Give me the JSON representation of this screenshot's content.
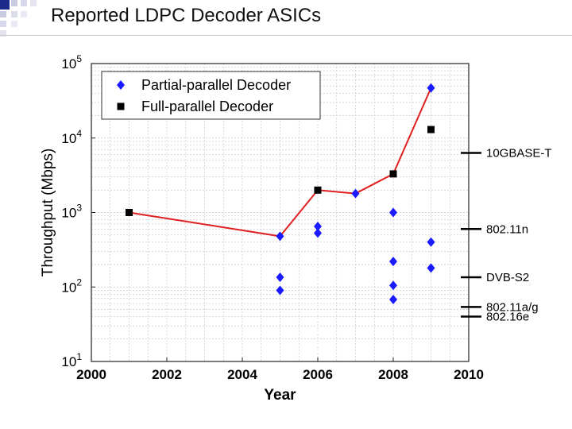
{
  "slide": {
    "title": "Reported LDPC Decoder ASICs"
  },
  "colors": {
    "partial": "#1a1aff",
    "full": "#000000",
    "trend": "#e02020",
    "grid": "#c8c8c8"
  },
  "standards": [
    {
      "label": "10GBASE-T",
      "throughput": 6300
    },
    {
      "label": "802.11n",
      "throughput": 600
    },
    {
      "label": "DVB-S2",
      "throughput": 135
    },
    {
      "label": "802.11a/g",
      "throughput": 54
    },
    {
      "label": "802.16e",
      "throughput": 40
    }
  ],
  "chart_data": {
    "type": "scatter",
    "xlabel": "Year",
    "ylabel": "Throughput (Mbps)",
    "xlim": [
      2000,
      2010
    ],
    "ylim": [
      10,
      100000
    ],
    "yscale": "log",
    "xticks": [
      2000,
      2002,
      2004,
      2006,
      2008,
      2010
    ],
    "yticks": [
      {
        "value": 10,
        "base": "10",
        "exp": "1"
      },
      {
        "value": 100,
        "base": "10",
        "exp": "2"
      },
      {
        "value": 1000,
        "base": "10",
        "exp": "3"
      },
      {
        "value": 10000,
        "base": "10",
        "exp": "4"
      },
      {
        "value": 100000,
        "base": "10",
        "exp": "5"
      }
    ],
    "grid": true,
    "legend_position": "top-left",
    "series": [
      {
        "name": "Partial-parallel Decoder",
        "marker": "diamond",
        "points": [
          [
            2005,
            480
          ],
          [
            2005,
            135
          ],
          [
            2005,
            90
          ],
          [
            2006,
            650
          ],
          [
            2006,
            530
          ],
          [
            2007,
            1800
          ],
          [
            2008,
            1000
          ],
          [
            2008,
            220
          ],
          [
            2008,
            105
          ],
          [
            2008,
            68
          ],
          [
            2009,
            47000
          ],
          [
            2009,
            400
          ],
          [
            2009,
            180
          ]
        ]
      },
      {
        "name": "Full-parallel Decoder",
        "marker": "square",
        "points": [
          [
            2001,
            1000
          ],
          [
            2006,
            2000
          ],
          [
            2008,
            3300
          ],
          [
            2009,
            13000
          ]
        ]
      }
    ],
    "trend_line": [
      [
        2001,
        1000
      ],
      [
        2005,
        480
      ],
      [
        2006,
        2000
      ],
      [
        2007,
        1800
      ],
      [
        2008,
        3300
      ],
      [
        2009,
        47000
      ]
    ]
  }
}
